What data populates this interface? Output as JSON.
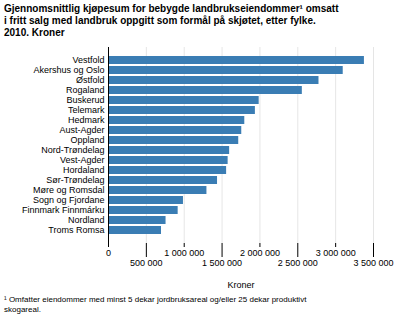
{
  "chart_data": {
    "type": "bar",
    "orientation": "horizontal",
    "title": "Gjennomsnittlig kjøpesum for bebygde landbrukseiendommer¹ omsatt\ni fritt salg med landbruk oppgitt som formål på skjøtet, etter fylke.\n2010. Kroner",
    "xlabel": "Kroner",
    "footnote": "¹ Omfatter eiendommer med minst 5 dekar jordbruksareal og/eller 25 dekar produktivt\nskogareal.",
    "categories": [
      "Vestfold",
      "Akershus og Oslo",
      "Østfold",
      "Rogaland",
      "Buskerud",
      "Telemark",
      "Hedmark",
      "Aust-Agder",
      "Oppland",
      "Nord-Trøndelag",
      "Vest-Agder",
      "Hordaland",
      "Sør-Trøndelag",
      "Møre og Romsdal",
      "Sogn og Fjordane",
      "Finnmark Finnmárku",
      "Nordland",
      "Troms Romsa"
    ],
    "values": [
      3380000,
      3100000,
      2780000,
      2560000,
      1990000,
      1940000,
      1800000,
      1760000,
      1720000,
      1600000,
      1580000,
      1560000,
      1440000,
      1300000,
      990000,
      920000,
      760000,
      700000
    ],
    "color": "#3a7db4",
    "xlim": [
      0,
      3500000
    ],
    "xticks": [
      0,
      {
        "value": 500000,
        "label": "500 000"
      },
      {
        "value": 1000000,
        "label": "1 000 000"
      },
      {
        "value": 1500000,
        "label": "1 500 000"
      },
      {
        "value": 2000000,
        "label": "2 000 000"
      },
      {
        "value": 2500000,
        "label": "2 500 000"
      },
      {
        "value": 3000000,
        "label": "3 000 000"
      },
      {
        "value": 3500000,
        "label": "3 500 000"
      }
    ],
    "grid": true
  }
}
